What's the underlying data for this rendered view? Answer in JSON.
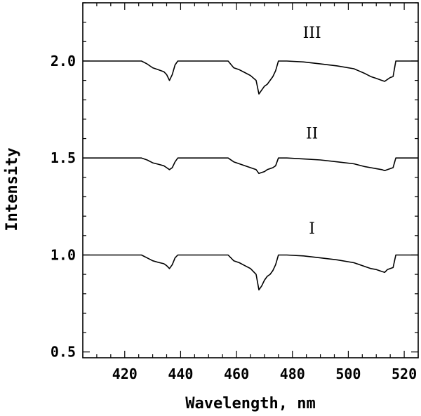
{
  "chart_data": {
    "type": "line",
    "xlabel": "Wavelength, nm",
    "ylabel": "Intensity",
    "xlim": [
      405,
      525
    ],
    "ylim": [
      0.47,
      2.3
    ],
    "xticks": [
      420,
      440,
      460,
      480,
      500,
      520
    ],
    "xtick_labels": [
      "420",
      "440",
      "460",
      "480",
      "500",
      "520"
    ],
    "yticks": [
      0.5,
      1.0,
      1.5,
      2.0
    ],
    "ytick_labels": [
      "0.5",
      "1.0",
      "1.5",
      "2.0"
    ],
    "x_minor_step": 5,
    "y_minor_step": 0.1,
    "grid": false,
    "legend": "none",
    "series": [
      {
        "name": "I",
        "label_at": [
          487,
          1.11
        ],
        "x": [
          405,
          426,
          428,
          430,
          432,
          434,
          435,
          436,
          437,
          438,
          439,
          441,
          457,
          459,
          461,
          463,
          465,
          467,
          468,
          469,
          470,
          471,
          472,
          473,
          474,
          475,
          478,
          484,
          490,
          496,
          502,
          506,
          508,
          510,
          512,
          513,
          514,
          515,
          516,
          517,
          525
        ],
        "y": [
          1.0,
          1.0,
          0.985,
          0.97,
          0.962,
          0.955,
          0.945,
          0.93,
          0.95,
          0.985,
          1.0,
          1.0,
          1.0,
          0.97,
          0.96,
          0.945,
          0.93,
          0.9,
          0.82,
          0.84,
          0.87,
          0.89,
          0.9,
          0.92,
          0.95,
          1.0,
          1.0,
          0.995,
          0.985,
          0.975,
          0.96,
          0.94,
          0.93,
          0.925,
          0.915,
          0.91,
          0.925,
          0.93,
          0.935,
          1.0,
          1.0
        ]
      },
      {
        "name": "II",
        "label_at": [
          487,
          1.6
        ],
        "x": [
          405,
          426,
          428,
          430,
          432,
          434,
          435,
          436,
          437,
          438,
          439,
          441,
          457,
          459,
          461,
          463,
          465,
          467,
          468,
          469,
          470,
          471,
          472,
          473,
          474,
          475,
          478,
          484,
          490,
          496,
          502,
          506,
          508,
          510,
          512,
          513,
          514,
          515,
          516,
          517,
          525
        ],
        "y": [
          1.5,
          1.5,
          1.49,
          1.475,
          1.468,
          1.46,
          1.45,
          1.44,
          1.45,
          1.48,
          1.5,
          1.5,
          1.5,
          1.48,
          1.47,
          1.46,
          1.45,
          1.44,
          1.42,
          1.425,
          1.43,
          1.44,
          1.445,
          1.45,
          1.46,
          1.5,
          1.5,
          1.495,
          1.49,
          1.48,
          1.47,
          1.455,
          1.45,
          1.445,
          1.44,
          1.435,
          1.44,
          1.445,
          1.45,
          1.5,
          1.5
        ]
      },
      {
        "name": "III",
        "label_at": [
          487,
          2.12
        ],
        "x": [
          405,
          426,
          428,
          430,
          432,
          434,
          435,
          436,
          437,
          438,
          439,
          441,
          457,
          459,
          461,
          463,
          465,
          467,
          468,
          469,
          470,
          471,
          472,
          473,
          474,
          475,
          478,
          484,
          490,
          496,
          502,
          506,
          508,
          510,
          512,
          513,
          514,
          515,
          516,
          517,
          525
        ],
        "y": [
          2.0,
          2.0,
          1.985,
          1.965,
          1.955,
          1.945,
          1.93,
          1.9,
          1.93,
          1.98,
          2.0,
          2.0,
          2.0,
          1.965,
          1.955,
          1.94,
          1.925,
          1.9,
          1.83,
          1.85,
          1.87,
          1.88,
          1.9,
          1.92,
          1.95,
          2.0,
          2.0,
          1.995,
          1.985,
          1.975,
          1.96,
          1.935,
          1.92,
          1.91,
          1.9,
          1.895,
          1.905,
          1.915,
          1.92,
          2.0,
          2.0
        ]
      }
    ]
  }
}
